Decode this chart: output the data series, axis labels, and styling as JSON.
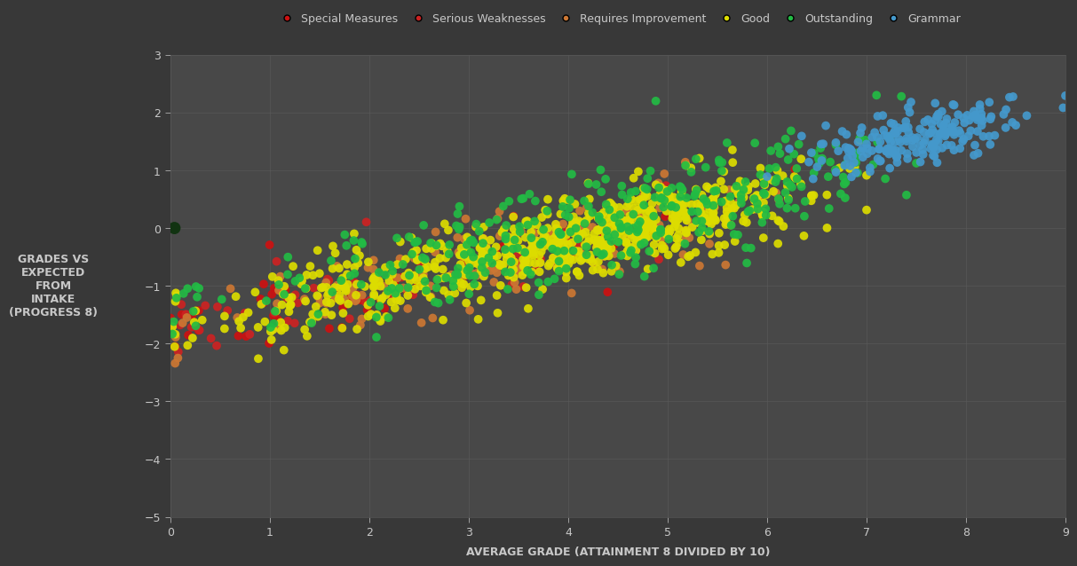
{
  "background_color": "#383838",
  "plot_bg_color": "#484848",
  "grid_color": "#606060",
  "text_color": "#c8c8c8",
  "xlabel": "AVERAGE GRADE (ATTAINMENT 8 DIVIDED BY 10)",
  "ylabel": "GRADES VS\nEXPECTED\nFROM\nINTAKE\n(PROGRESS 8)",
  "xlim": [
    0,
    9
  ],
  "ylim": [
    -5,
    3
  ],
  "xticks": [
    0,
    1,
    2,
    3,
    4,
    5,
    6,
    7,
    8,
    9
  ],
  "yticks": [
    -5,
    -4,
    -3,
    -2,
    -1,
    0,
    1,
    2,
    3
  ],
  "legend_labels": [
    "Special Measures",
    "Serious Weaknesses",
    "Requires Improvement",
    "Good",
    "Outstanding",
    "Grammar"
  ],
  "legend_colors": [
    "#cc1111",
    "#cc2222",
    "#cc7733",
    "#dddd00",
    "#22bb44",
    "#4499cc"
  ],
  "seed": 42,
  "axis_label_fontsize": 9,
  "tick_fontsize": 9,
  "legend_fontsize": 9,
  "marker_size": 7
}
